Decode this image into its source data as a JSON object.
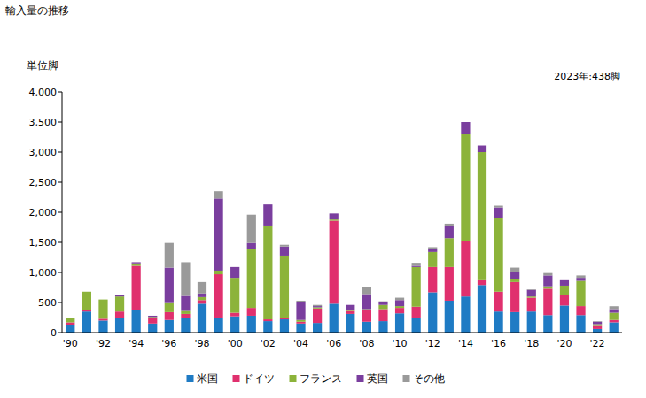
{
  "chart_data": {
    "type": "bar",
    "stacked": true,
    "title": "輸入量の推移",
    "y_label": "単位脚",
    "annotations": [
      "2023年:438脚"
    ],
    "legend": "bottom",
    "grid": false,
    "categories": [
      "'90",
      null,
      "'92",
      null,
      "'94",
      null,
      "'96",
      null,
      "'98",
      null,
      "'00",
      null,
      "'02",
      null,
      "'04",
      null,
      "'06",
      null,
      "'08",
      null,
      "'10",
      null,
      "'12",
      null,
      "'14",
      null,
      "'16",
      null,
      "'18",
      null,
      "'20",
      null,
      "'22",
      null
    ],
    "ylim": [
      0,
      4000
    ],
    "yticks": [
      0,
      500,
      {
        "value": 1000,
        "label": "1,000"
      },
      {
        "value": 1500,
        "label": "1,500"
      },
      {
        "value": 2000,
        "label": "2,000"
      },
      {
        "value": 2500,
        "label": "2,500"
      },
      {
        "value": 3000,
        "label": "3,000"
      },
      {
        "value": 3500,
        "label": "3,500"
      },
      {
        "value": 4000,
        "label": "4,000"
      }
    ],
    "series": [
      {
        "name": "米国",
        "color": "#1f7bc4",
        "values": [
          130,
          350,
          200,
          250,
          380,
          150,
          210,
          240,
          480,
          240,
          270,
          280,
          190,
          220,
          150,
          160,
          480,
          310,
          180,
          190,
          320,
          250,
          670,
          530,
          600,
          790,
          350,
          340,
          350,
          290,
          450,
          290,
          60,
          170
        ]
      },
      {
        "name": "ドイツ",
        "color": "#e0306e",
        "values": [
          40,
          20,
          30,
          100,
          730,
          90,
          130,
          70,
          60,
          730,
          60,
          130,
          30,
          20,
          30,
          240,
          1380,
          50,
          190,
          200,
          90,
          180,
          420,
          560,
          920,
          80,
          330,
          500,
          230,
          440,
          180,
          150,
          50,
          40
        ]
      },
      {
        "name": "フランス",
        "color": "#8cb33a",
        "values": [
          70,
          310,
          320,
          250,
          40,
          20,
          150,
          50,
          50,
          60,
          580,
          980,
          1560,
          1040,
          30,
          20,
          20,
          20,
          20,
          70,
          30,
          660,
          250,
          480,
          1780,
          2130,
          1220,
          50,
          20,
          40,
          150,
          420,
          30,
          120
        ]
      },
      {
        "name": "英国",
        "color": "#7a3e9e",
        "values": [
          0,
          0,
          0,
          20,
          20,
          20,
          590,
          250,
          60,
          1200,
          180,
          100,
          350,
          150,
          290,
          20,
          100,
          80,
          250,
          40,
          100,
          20,
          50,
          210,
          200,
          110,
          180,
          120,
          110,
          180,
          90,
          50,
          40,
          60
        ]
      },
      {
        "name": "その他",
        "color": "#9a9a9a",
        "values": [
          0,
          0,
          0,
          0,
          0,
          0,
          410,
          560,
          190,
          120,
          0,
          470,
          0,
          30,
          30,
          20,
          0,
          0,
          110,
          20,
          40,
          50,
          30,
          30,
          0,
          0,
          30,
          70,
          10,
          40,
          0,
          40,
          10,
          48
        ]
      }
    ]
  }
}
